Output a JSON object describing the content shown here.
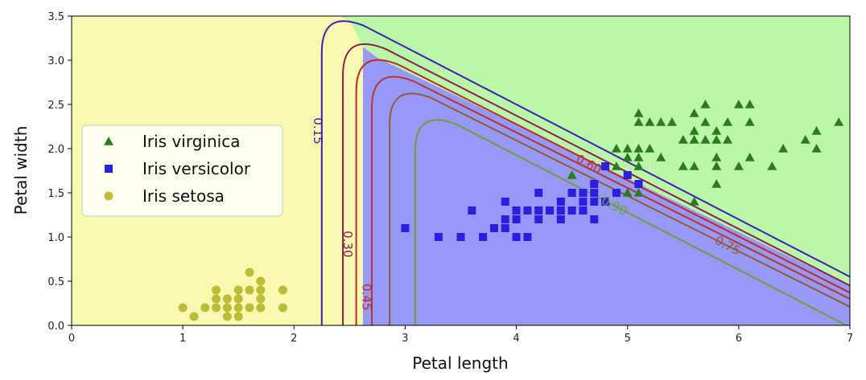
{
  "chart_data": {
    "type": "scatter",
    "title": "",
    "xlabel": "Petal length",
    "ylabel": "Petal width",
    "xlim": [
      0,
      7
    ],
    "ylim": [
      0,
      3.5
    ],
    "xticks": [
      "0",
      "1",
      "2",
      "3",
      "4",
      "5",
      "6",
      "7"
    ],
    "yticks": [
      "0.0",
      "0.5",
      "1.0",
      "1.5",
      "2.0",
      "2.5",
      "3.0",
      "3.5"
    ],
    "grid": false,
    "legend_position": "center-left",
    "regions": [
      {
        "name": "Iris setosa",
        "color": "#f8f8b0"
      },
      {
        "name": "Iris versicolor",
        "color": "#9898f8"
      },
      {
        "name": "Iris virginica",
        "color": "#b8f8a8"
      }
    ],
    "series": [
      {
        "name": "Iris virginica",
        "marker": "triangle",
        "color": "#2f7a1c",
        "points": [
          [
            4.5,
            1.7
          ],
          [
            5.1,
            2.4
          ],
          [
            5.1,
            2.3
          ],
          [
            5.2,
            2.3
          ],
          [
            5.3,
            2.3
          ],
          [
            5.4,
            2.3
          ],
          [
            5.6,
            2.4
          ],
          [
            5.7,
            2.5
          ],
          [
            5.6,
            2.2
          ],
          [
            5.7,
            2.3
          ],
          [
            5.8,
            2.2
          ],
          [
            5.9,
            2.3
          ],
          [
            6.0,
            2.5
          ],
          [
            6.1,
            2.5
          ],
          [
            6.1,
            2.3
          ],
          [
            5.5,
            2.1
          ],
          [
            5.6,
            2.1
          ],
          [
            5.7,
            2.1
          ],
          [
            5.8,
            2.1
          ],
          [
            5.9,
            2.1
          ],
          [
            5.0,
            2.0
          ],
          [
            5.1,
            2.0
          ],
          [
            5.2,
            2.0
          ],
          [
            4.9,
            2.0
          ],
          [
            5.0,
            1.9
          ],
          [
            5.1,
            1.9
          ],
          [
            5.3,
            1.9
          ],
          [
            5.8,
            1.9
          ],
          [
            6.1,
            1.9
          ],
          [
            4.9,
            1.8
          ],
          [
            5.1,
            1.8
          ],
          [
            5.5,
            1.8
          ],
          [
            5.6,
            1.8
          ],
          [
            5.8,
            1.8
          ],
          [
            6.0,
            1.8
          ],
          [
            6.3,
            1.8
          ],
          [
            6.4,
            2.0
          ],
          [
            6.6,
            2.1
          ],
          [
            6.7,
            2.2
          ],
          [
            6.7,
            2.0
          ],
          [
            6.9,
            2.3
          ],
          [
            5.8,
            1.6
          ],
          [
            5.0,
            1.5
          ],
          [
            5.1,
            1.5
          ],
          [
            5.6,
            1.4
          ]
        ]
      },
      {
        "name": "Iris versicolor",
        "marker": "square",
        "color": "#2a1ee0",
        "points": [
          [
            3.0,
            1.1
          ],
          [
            3.3,
            1.0
          ],
          [
            3.5,
            1.0
          ],
          [
            3.6,
            1.3
          ],
          [
            3.7,
            1.0
          ],
          [
            3.8,
            1.1
          ],
          [
            3.9,
            1.1
          ],
          [
            3.9,
            1.2
          ],
          [
            3.9,
            1.4
          ],
          [
            4.0,
            1.0
          ],
          [
            4.0,
            1.2
          ],
          [
            4.0,
            1.3
          ],
          [
            4.1,
            1.0
          ],
          [
            4.1,
            1.3
          ],
          [
            4.2,
            1.2
          ],
          [
            4.2,
            1.3
          ],
          [
            4.2,
            1.5
          ],
          [
            4.3,
            1.3
          ],
          [
            4.4,
            1.2
          ],
          [
            4.4,
            1.3
          ],
          [
            4.4,
            1.4
          ],
          [
            4.5,
            1.3
          ],
          [
            4.5,
            1.5
          ],
          [
            4.6,
            1.3
          ],
          [
            4.6,
            1.4
          ],
          [
            4.6,
            1.5
          ],
          [
            4.7,
            1.2
          ],
          [
            4.7,
            1.4
          ],
          [
            4.7,
            1.5
          ],
          [
            4.7,
            1.6
          ],
          [
            4.8,
            1.4
          ],
          [
            4.8,
            1.8
          ],
          [
            4.9,
            1.5
          ],
          [
            5.0,
            1.7
          ],
          [
            5.1,
            1.6
          ]
        ]
      },
      {
        "name": "Iris setosa",
        "marker": "circle",
        "color": "#bcbc3a",
        "points": [
          [
            1.0,
            0.2
          ],
          [
            1.1,
            0.1
          ],
          [
            1.2,
            0.2
          ],
          [
            1.3,
            0.2
          ],
          [
            1.3,
            0.3
          ],
          [
            1.3,
            0.4
          ],
          [
            1.4,
            0.1
          ],
          [
            1.4,
            0.2
          ],
          [
            1.4,
            0.3
          ],
          [
            1.5,
            0.1
          ],
          [
            1.5,
            0.2
          ],
          [
            1.5,
            0.3
          ],
          [
            1.5,
            0.4
          ],
          [
            1.6,
            0.2
          ],
          [
            1.6,
            0.4
          ],
          [
            1.6,
            0.6
          ],
          [
            1.7,
            0.2
          ],
          [
            1.7,
            0.3
          ],
          [
            1.7,
            0.4
          ],
          [
            1.7,
            0.5
          ],
          [
            1.9,
            0.2
          ],
          [
            1.9,
            0.4
          ]
        ]
      }
    ],
    "contours": [
      {
        "label": "0.15",
        "color": "#3f1fb0",
        "label_at": [
          2.21,
          2.2
        ]
      },
      {
        "label": "0.30",
        "color": "#8a2050",
        "label_at": [
          2.48,
          0.92
        ]
      },
      {
        "label": "0.45",
        "color": "#c02828",
        "label_at": [
          2.65,
          0.32
        ]
      },
      {
        "label": "0.60",
        "color": "#b03838",
        "label_at": [
          4.65,
          1.82
        ]
      },
      {
        "label": "0.75",
        "color": "#925a3c",
        "label_at": [
          5.9,
          0.9
        ]
      },
      {
        "label": "0.90",
        "color": "#6aa040",
        "label_at": [
          4.88,
          1.35
        ]
      }
    ]
  }
}
